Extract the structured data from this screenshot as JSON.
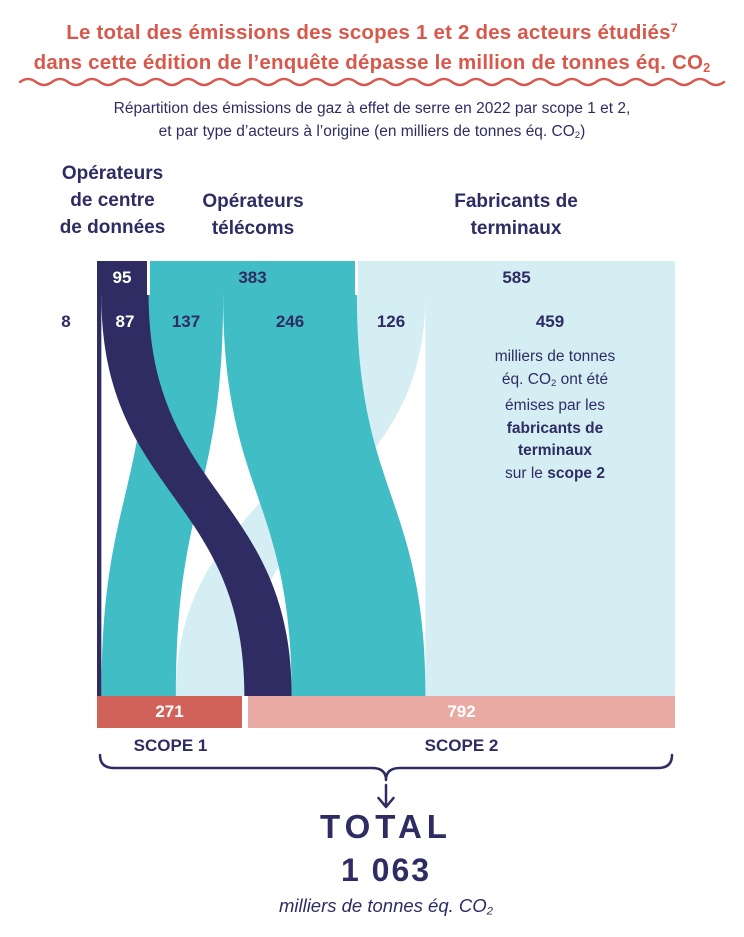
{
  "title": {
    "line1": "Le total des émissions des scopes 1 et 2 des acteurs étudiés",
    "footnote": "7",
    "line2": "dans cette édition de l’enquête dépasse le million de tonnes éq. CO",
    "line2_sub": "2"
  },
  "subtitle": {
    "line1": "Répartition des émissions de gaz à effet de serre en 2022 par scope 1 et 2,",
    "line2": "et par type d’acteurs à l’origine (en milliers de tonnes éq. CO",
    "line2_sub": "2",
    "line2_end": ")"
  },
  "columns": {
    "datacenters": "Opérateurs\nde centre\nde données",
    "telecoms": "Opérateurs\ntélécoms",
    "devices": "Fabricants de\nterminaux"
  },
  "annotation": {
    "line1": "milliers de tonnes",
    "line2": "éq. CO",
    "line2_sub": "2",
    "line2_end": " ont été",
    "line3": "émises par les",
    "line4_bold": "fabricants de",
    "line5_bold": "terminaux",
    "line6": "sur le ",
    "line6_bold": "scope 2"
  },
  "scope_labels": {
    "scope1": "SCOPE 1",
    "scope2": "SCOPE 2"
  },
  "total": {
    "label": "TOTAL",
    "value": "1 063",
    "unit": "milliers de tonnes éq. CO",
    "unit_sub": "2"
  },
  "colors": {
    "accent_red": "#d8584b",
    "navy": "#2e2c62",
    "teal": "#40bdc5",
    "light_cyan": "#d5eef3",
    "scope1_coral": "#d0625a",
    "scope2_pink": "#eaaaa4"
  },
  "chart_data": {
    "type": "sankey",
    "title": "Répartition des émissions de gaz à effet de serre en 2022 par scope 1 et 2, et par type d’acteurs à l’origine (en milliers de tonnes éq. CO2)",
    "unit": "milliers de tonnes éq. CO2",
    "year": "2022",
    "sources": [
      {
        "name": "Opérateurs de centre de données",
        "total": 95,
        "color": "#2e2c62"
      },
      {
        "name": "Opérateurs télécoms",
        "total": 383,
        "color": "#40bdc5"
      },
      {
        "name": "Fabricants de terminaux",
        "total": 585,
        "color": "#d5eef3"
      }
    ],
    "targets": [
      {
        "name": "SCOPE 1",
        "total": 271,
        "color": "#d0625a"
      },
      {
        "name": "SCOPE 2",
        "total": 792,
        "color": "#eaaaa4"
      }
    ],
    "flows": [
      {
        "from": "Opérateurs de centre de données",
        "to": "SCOPE 1",
        "value": 8
      },
      {
        "from": "Opérateurs de centre de données",
        "to": "SCOPE 2",
        "value": 87
      },
      {
        "from": "Opérateurs télécoms",
        "to": "SCOPE 1",
        "value": 137
      },
      {
        "from": "Opérateurs télécoms",
        "to": "SCOPE 2",
        "value": 246
      },
      {
        "from": "Fabricants de terminaux",
        "to": "SCOPE 1",
        "value": 126
      },
      {
        "from": "Fabricants de terminaux",
        "to": "SCOPE 2",
        "value": 459
      }
    ],
    "grand_total": 1063
  }
}
